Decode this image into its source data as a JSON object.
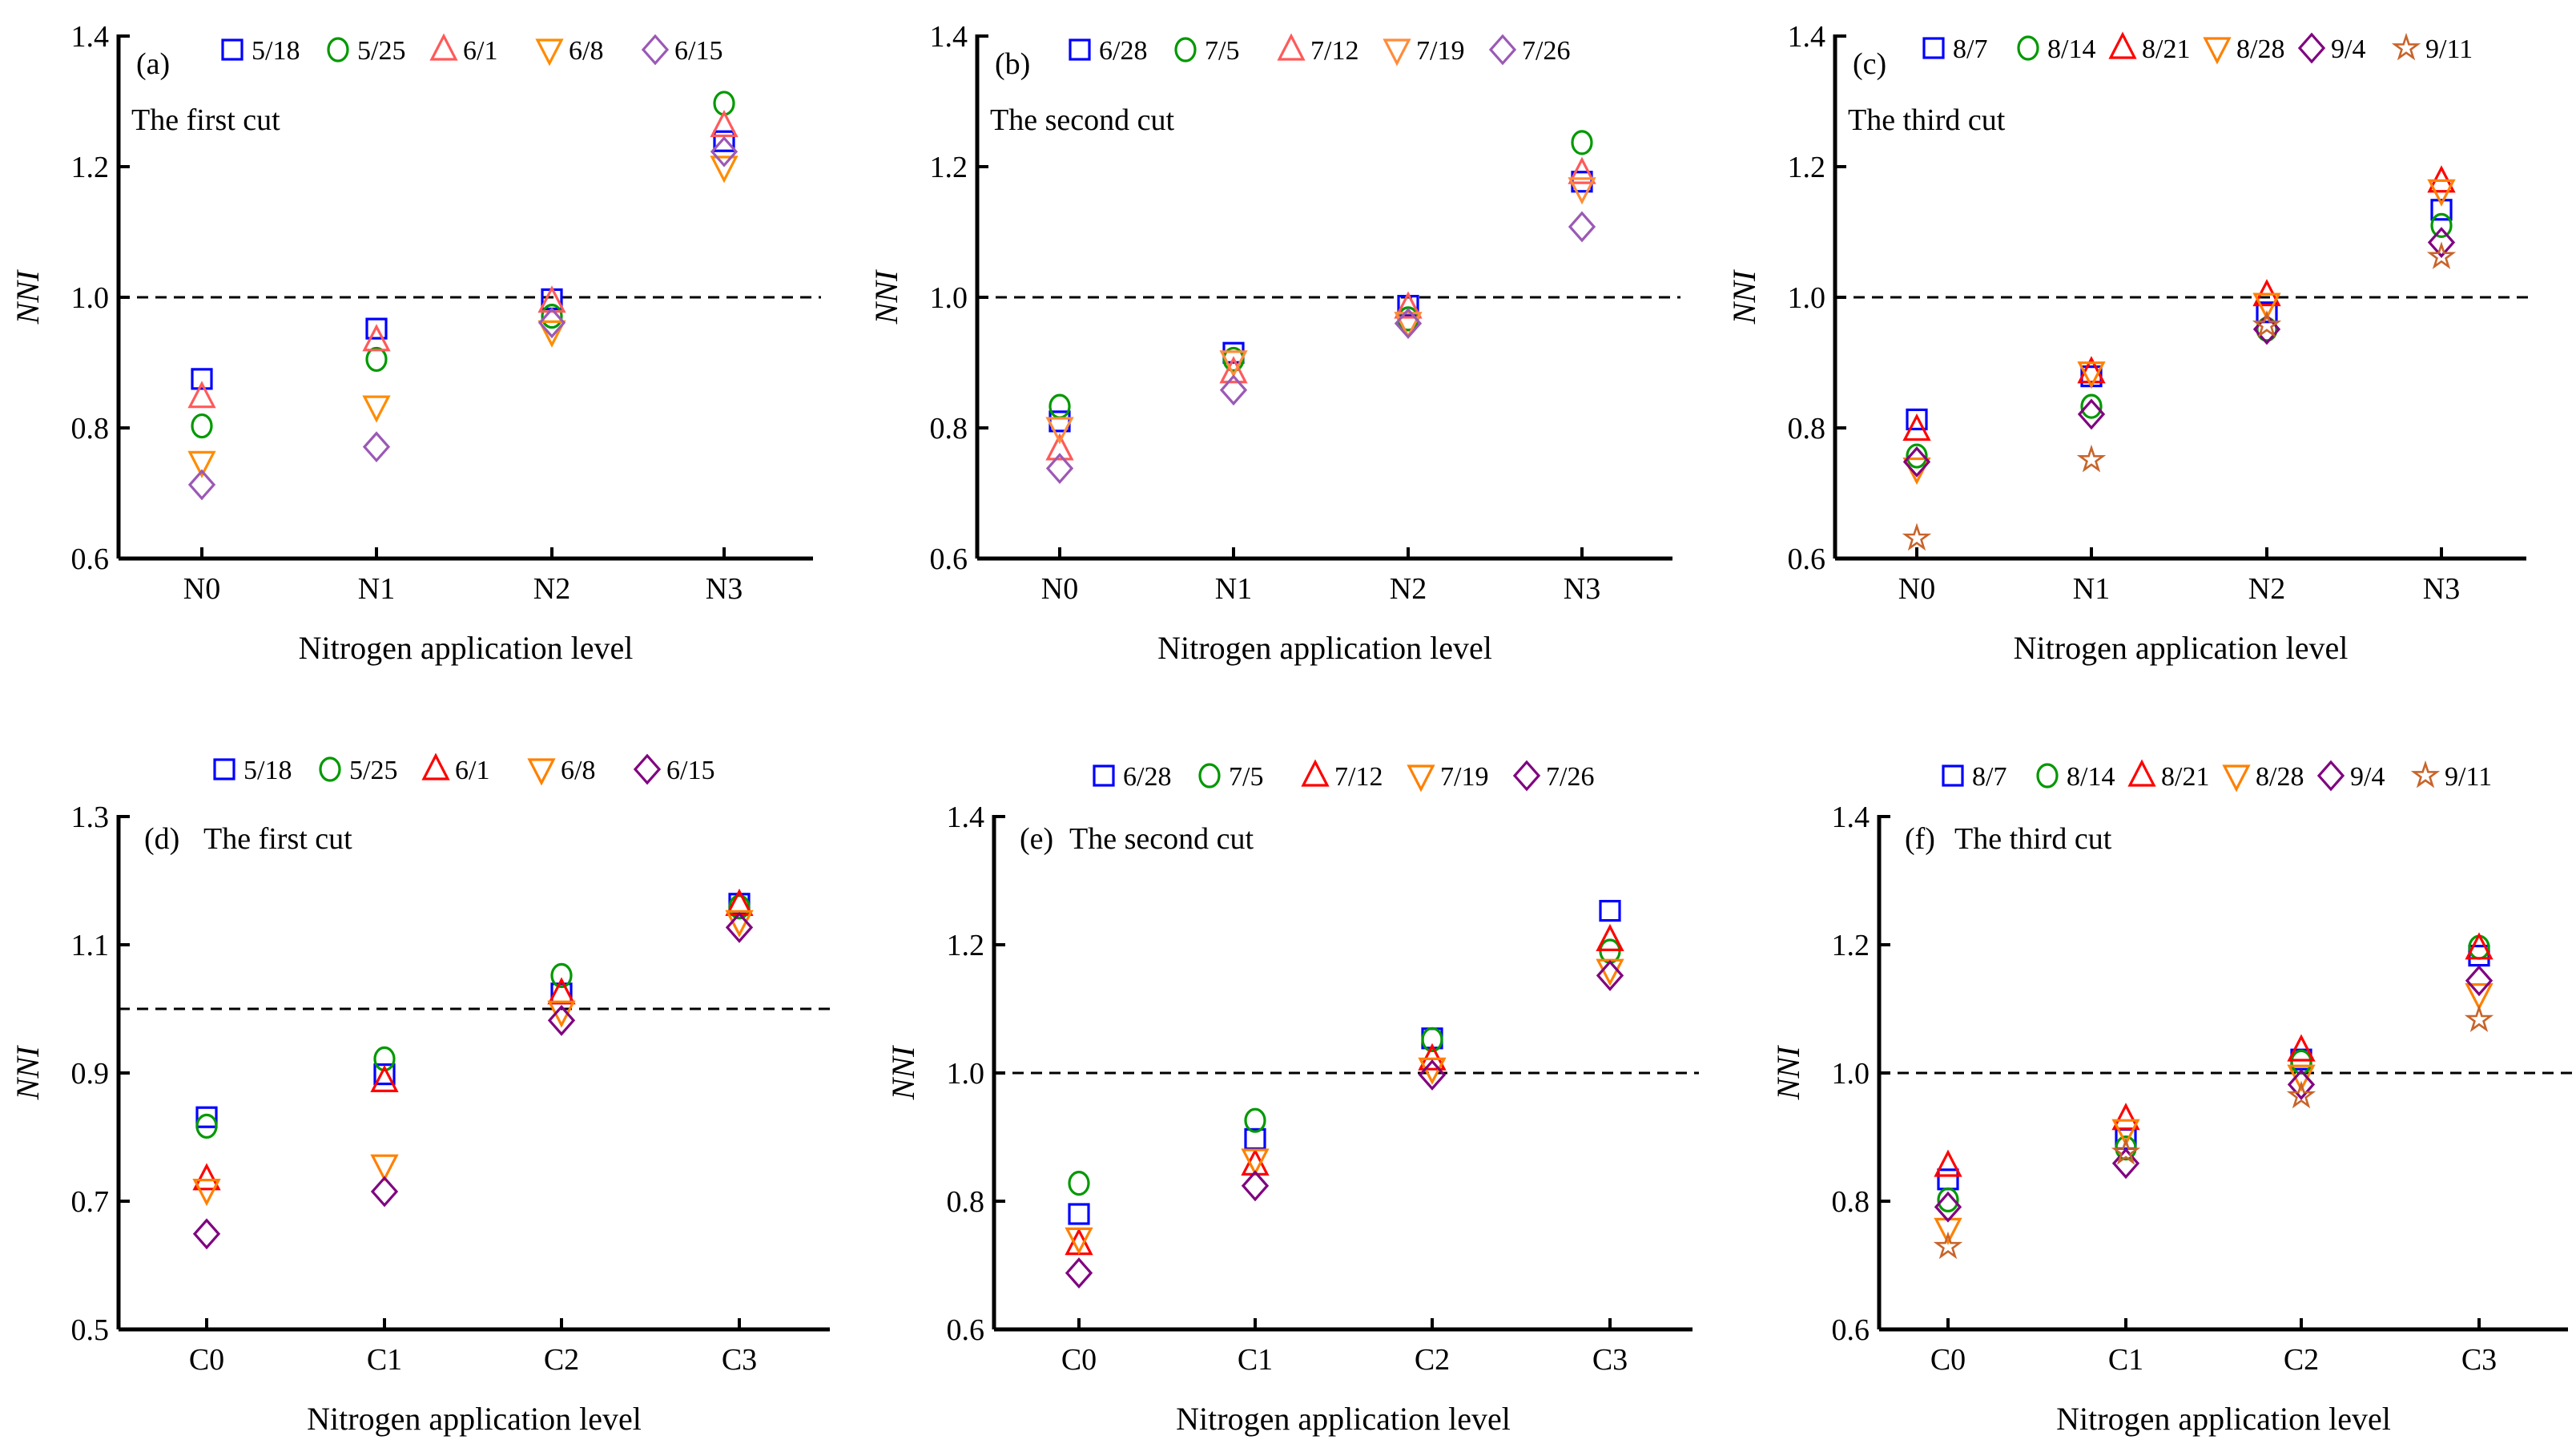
{
  "chart_data": [
    {
      "type": "scatter",
      "panel_label": "(a)",
      "subtitle": "The first cut",
      "xlabel": "Nitrogen application level",
      "ylabel": "NNI",
      "categories": [
        "N0",
        "N1",
        "N2",
        "N3"
      ],
      "ylim": [
        0.6,
        1.4
      ],
      "yticks": [
        "0.6",
        "0.8",
        "1.0",
        "1.2",
        "1.4"
      ],
      "reference_line": 1.0,
      "legend_position": "top",
      "series": [
        {
          "name": "5/18",
          "marker": "square",
          "color": "#0000ff",
          "values": [
            0.875,
            0.952,
            0.997,
            1.239
          ]
        },
        {
          "name": "5/25",
          "marker": "circle",
          "color": "#009900",
          "values": [
            0.803,
            0.905,
            0.971,
            1.297
          ]
        },
        {
          "name": "6/1",
          "marker": "triangle-up",
          "color": "#ff5a5a",
          "values": [
            0.847,
            0.934,
            0.993,
            1.262
          ]
        },
        {
          "name": "6/8",
          "marker": "triangle-down",
          "color": "#ff8c00",
          "values": [
            0.748,
            0.833,
            0.948,
            1.2
          ]
        },
        {
          "name": "6/15",
          "marker": "diamond",
          "color": "#9b59b6",
          "values": [
            0.713,
            0.771,
            0.961,
            1.223
          ]
        }
      ]
    },
    {
      "type": "scatter",
      "panel_label": "(b)",
      "subtitle": "The second cut",
      "xlabel": "Nitrogen application level",
      "ylabel": "NNI",
      "categories": [
        "N0",
        "N1",
        "N2",
        "N3"
      ],
      "ylim": [
        0.6,
        1.4
      ],
      "yticks": [
        "0.6",
        "0.8",
        "1.0",
        "1.2",
        "1.4"
      ],
      "reference_line": 1.0,
      "legend_position": "top",
      "series": [
        {
          "name": "6/28",
          "marker": "square",
          "color": "#0000ff",
          "values": [
            0.81,
            0.915,
            0.987,
            1.177
          ]
        },
        {
          "name": "7/5",
          "marker": "circle",
          "color": "#009900",
          "values": [
            0.833,
            0.905,
            0.967,
            1.237
          ]
        },
        {
          "name": "7/12",
          "marker": "triangle-up",
          "color": "#ff5a5a",
          "values": [
            0.767,
            0.885,
            0.984,
            1.19
          ]
        },
        {
          "name": "7/19",
          "marker": "triangle-down",
          "color": "#ff8c3a",
          "values": [
            0.8,
            0.902,
            0.961,
            1.167
          ]
        },
        {
          "name": "7/26",
          "marker": "diamond",
          "color": "#9b59b6",
          "values": [
            0.738,
            0.858,
            0.96,
            1.108
          ]
        }
      ]
    },
    {
      "type": "scatter",
      "panel_label": "(c)",
      "subtitle": "The third cut",
      "xlabel": "Nitrogen application level",
      "ylabel": "NNI",
      "categories": [
        "N0",
        "N1",
        "N2",
        "N3"
      ],
      "ylim": [
        0.6,
        1.4
      ],
      "yticks": [
        "0.6",
        "0.8",
        "1.0",
        "1.2",
        "1.4"
      ],
      "reference_line": 1.0,
      "legend_position": "top",
      "series": [
        {
          "name": "8/7",
          "marker": "square",
          "color": "#0000ff",
          "values": [
            0.813,
            0.879,
            0.977,
            1.134
          ]
        },
        {
          "name": "8/14",
          "marker": "circle",
          "color": "#009900",
          "values": [
            0.757,
            0.833,
            0.951,
            1.11
          ]
        },
        {
          "name": "8/21",
          "marker": "triangle-up",
          "color": "#ff0000",
          "values": [
            0.797,
            0.885,
            1.003,
            1.177
          ]
        },
        {
          "name": "8/28",
          "marker": "triangle-down",
          "color": "#ff8000",
          "values": [
            0.738,
            0.885,
            0.99,
            1.164
          ]
        },
        {
          "name": "9/4",
          "marker": "diamond",
          "color": "#800080",
          "values": [
            0.748,
            0.821,
            0.951,
            1.084
          ]
        },
        {
          "name": "9/11",
          "marker": "star",
          "color": "#c8642a",
          "values": [
            0.631,
            0.751,
            0.957,
            1.062
          ]
        }
      ]
    },
    {
      "type": "scatter",
      "panel_label": "(d)",
      "subtitle": "The first cut",
      "xlabel": "Nitrogen application level",
      "ylabel": "NNI",
      "categories": [
        "C0",
        "C1",
        "C2",
        "C3"
      ],
      "ylim": [
        0.5,
        1.3
      ],
      "yticks": [
        "0.5",
        "0.7",
        "0.9",
        "1.1",
        "1.3"
      ],
      "reference_line": 1.0,
      "legend_position": "top",
      "series": [
        {
          "name": "5/18",
          "marker": "square",
          "color": "#0000ff",
          "values": [
            0.831,
            0.898,
            1.024,
            1.164
          ]
        },
        {
          "name": "5/25",
          "marker": "circle",
          "color": "#009900",
          "values": [
            0.817,
            0.922,
            1.052,
            1.159
          ]
        },
        {
          "name": "6/1",
          "marker": "triangle-up",
          "color": "#ff0000",
          "values": [
            0.734,
            0.887,
            1.024,
            1.162
          ]
        },
        {
          "name": "6/8",
          "marker": "triangle-down",
          "color": "#ff8000",
          "values": [
            0.718,
            0.756,
            0.996,
            1.137
          ]
        },
        {
          "name": "6/15",
          "marker": "diamond",
          "color": "#800080",
          "values": [
            0.649,
            0.715,
            0.982,
            1.127
          ]
        }
      ]
    },
    {
      "type": "scatter",
      "panel_label": "(e)",
      "subtitle": "The second cut",
      "xlabel": "Nitrogen application level",
      "ylabel": "NNI",
      "categories": [
        "C0",
        "C1",
        "C2",
        "C3"
      ],
      "ylim": [
        0.6,
        1.4
      ],
      "yticks": [
        "0.6",
        "0.8",
        "1.0",
        "1.2",
        "1.4"
      ],
      "reference_line": 1.0,
      "legend_position": "top",
      "series": [
        {
          "name": "6/28",
          "marker": "square",
          "color": "#0000ff",
          "values": [
            0.78,
            0.897,
            1.054,
            1.253
          ]
        },
        {
          "name": "7/5",
          "marker": "circle",
          "color": "#009900",
          "values": [
            0.828,
            0.926,
            1.052,
            1.19
          ]
        },
        {
          "name": "7/12",
          "marker": "triangle-up",
          "color": "#ff0000",
          "values": [
            0.733,
            0.857,
            1.021,
            1.207
          ]
        },
        {
          "name": "7/19",
          "marker": "triangle-down",
          "color": "#ff8000",
          "values": [
            0.742,
            0.865,
            1.007,
            1.161
          ]
        },
        {
          "name": "7/26",
          "marker": "diamond",
          "color": "#800080",
          "values": [
            0.688,
            0.824,
            0.997,
            1.152
          ]
        }
      ]
    },
    {
      "type": "scatter",
      "panel_label": "(f)",
      "subtitle": "The third cut",
      "xlabel": "Nitrogen application level",
      "ylabel": "NNI",
      "categories": [
        "C0",
        "C1",
        "C2",
        "C3"
      ],
      "ylim": [
        0.6,
        1.4
      ],
      "yticks": [
        "0.6",
        "0.8",
        "1.0",
        "1.2",
        "1.4"
      ],
      "reference_line": 1.0,
      "legend_position": "top",
      "series": [
        {
          "name": "8/7",
          "marker": "square",
          "color": "#0000ff",
          "values": [
            0.834,
            0.897,
            1.021,
            1.183
          ]
        },
        {
          "name": "8/14",
          "marker": "circle",
          "color": "#009900",
          "values": [
            0.802,
            0.883,
            1.017,
            1.196
          ]
        },
        {
          "name": "8/21",
          "marker": "triangle-up",
          "color": "#ff0000",
          "values": [
            0.855,
            0.928,
            1.035,
            1.194
          ]
        },
        {
          "name": "8/28",
          "marker": "triangle-down",
          "color": "#ff8000",
          "values": [
            0.757,
            0.911,
            0.996,
            1.123
          ]
        },
        {
          "name": "9/4",
          "marker": "diamond",
          "color": "#800080",
          "values": [
            0.791,
            0.859,
            0.982,
            1.144
          ]
        },
        {
          "name": "9/11",
          "marker": "star",
          "color": "#c8642a",
          "values": [
            0.729,
            0.876,
            0.964,
            1.083
          ]
        }
      ]
    }
  ]
}
